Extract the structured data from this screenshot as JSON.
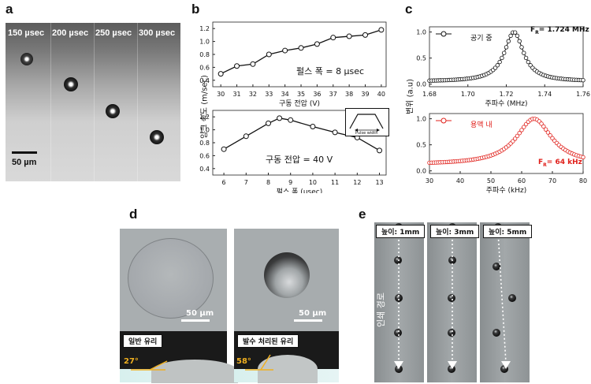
{
  "panels": {
    "a": {
      "label": "a",
      "times": [
        "150 µsec",
        "200 µsec",
        "250 µsec",
        "300 µsec"
      ],
      "scalebar": "50 µm"
    },
    "b": {
      "label": "b",
      "ylabel": "잉크 속도 (m/sec)",
      "top_note": "펄스 폭 = 8 µsec",
      "bottom_note": "구동 전압 = 40 V",
      "pulse_inset_label": "Pulse width"
    },
    "c": {
      "label": "c",
      "ylabel": "변위 (a.u)",
      "top_legend": "공기 중",
      "top_fr": "F",
      "top_fr_sub": "R",
      "top_fr_val": "= 1.724 MHz",
      "bottom_legend": "용액 내",
      "bottom_fr": "F",
      "bottom_fr_sub": "R",
      "bottom_fr_val": "= 64 kHz"
    },
    "d": {
      "label": "d",
      "scale_left": "50 µm",
      "scale_right": "50 µm",
      "glass_left": "일반 유리",
      "glass_right": "발수 처리된 유리",
      "angle_left": "27°",
      "angle_right": "58°"
    },
    "e": {
      "label": "e",
      "heights": [
        "높이: 1mm",
        "높이: 3mm",
        "높이: 5mm"
      ],
      "path_label": "인쇄 경로"
    }
  },
  "chart_data": [
    {
      "type": "line",
      "id": "b-top",
      "xlabel": "구동 전압 (V)",
      "ylabel": "잉크 속도 (m/sec)",
      "x": [
        30,
        31,
        32,
        33,
        34,
        35,
        36,
        37,
        38,
        39,
        40
      ],
      "xticks": [
        30,
        31,
        32,
        33,
        34,
        35,
        36,
        37,
        38,
        39,
        40
      ],
      "values": [
        0.5,
        0.62,
        0.65,
        0.8,
        0.86,
        0.9,
        0.96,
        1.06,
        1.08,
        1.1,
        1.18
      ],
      "ylim": [
        0.3,
        1.3
      ],
      "yticks": [
        0.4,
        0.6,
        0.8,
        1.0,
        1.2
      ]
    },
    {
      "type": "line",
      "id": "b-bottom",
      "xlabel": "펄스 폭 (µsec)",
      "ylabel": "잉크 속도 (m/sec)",
      "x": [
        6,
        7,
        8,
        8.5,
        9,
        10,
        11,
        12,
        13
      ],
      "xticks": [
        6,
        7,
        8,
        9,
        10,
        11,
        12,
        13
      ],
      "values": [
        0.7,
        0.9,
        1.1,
        1.18,
        1.15,
        1.05,
        0.96,
        0.88,
        0.68
      ],
      "ylim": [
        0.3,
        1.3
      ],
      "yticks": [
        0.4,
        0.6,
        0.8,
        1.0,
        1.2
      ]
    },
    {
      "type": "scatter",
      "id": "c-top",
      "xlabel": "주파수 (MHz)",
      "ylabel": "변위 (a.u)",
      "series": [
        {
          "name": "공기 중",
          "peak_x": 1.724,
          "peak_y": 1.0,
          "baseline": 0.05,
          "width": 0.006
        }
      ],
      "xlim": [
        1.68,
        1.76
      ],
      "xticks": [
        "1.68",
        "1.70",
        "1.72",
        "1.74",
        "1.76"
      ],
      "ylim": [
        -0.05,
        1.1
      ],
      "yticks": [
        "0.0",
        "0.5",
        "1.0"
      ],
      "color": "#111111"
    },
    {
      "type": "scatter",
      "id": "c-bottom",
      "xlabel": "주파수 (kHz)",
      "ylabel": "변위 (a.u)",
      "series": [
        {
          "name": "용액 내",
          "peak_x": 64,
          "peak_y": 1.0,
          "baseline": 0.12,
          "width": 7
        }
      ],
      "xlim": [
        30,
        80
      ],
      "xticks": [
        "30",
        "40",
        "50",
        "60",
        "70",
        "80"
      ],
      "ylim": [
        -0.05,
        1.1
      ],
      "yticks": [
        "0.0",
        "0.5",
        "1.0"
      ],
      "color": "#e0201b"
    }
  ]
}
